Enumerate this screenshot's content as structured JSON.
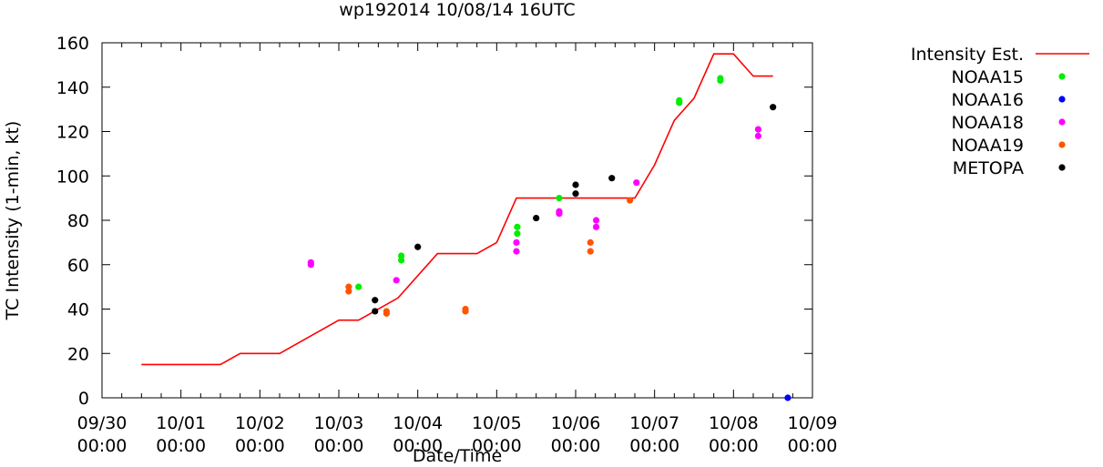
{
  "chart_data": {
    "type": "scatter",
    "title": "wp192014 10/08/14 16UTC",
    "xlabel": "Date/Time",
    "ylabel": "TC Intensity (1-min, kt)",
    "ylim": [
      0,
      160
    ],
    "y_ticks": [
      0,
      20,
      40,
      60,
      80,
      100,
      120,
      140,
      160
    ],
    "xlim": [
      "2014-09-30 00:00",
      "2014-10-09 00:00"
    ],
    "x_ticks": [
      {
        "date": "09/30",
        "time": "00:00"
      },
      {
        "date": "10/01",
        "time": "00:00"
      },
      {
        "date": "10/02",
        "time": "00:00"
      },
      {
        "date": "10/03",
        "time": "00:00"
      },
      {
        "date": "10/04",
        "time": "00:00"
      },
      {
        "date": "10/05",
        "time": "00:00"
      },
      {
        "date": "10/06",
        "time": "00:00"
      },
      {
        "date": "10/07",
        "time": "00:00"
      },
      {
        "date": "10/08",
        "time": "00:00"
      },
      {
        "date": "10/09",
        "time": "00:00"
      }
    ],
    "grid": false,
    "legend_position": "right",
    "series": [
      {
        "name": "Intensity Est.",
        "kind": "line",
        "color": "#ff0000",
        "points": [
          [
            "2014-09-30 12:00",
            15
          ],
          [
            "2014-10-01 12:00",
            15
          ],
          [
            "2014-10-01 18:00",
            20
          ],
          [
            "2014-10-02 06:00",
            20
          ],
          [
            "2014-10-03 00:00",
            35
          ],
          [
            "2014-10-03 06:00",
            35
          ],
          [
            "2014-10-03 18:00",
            45
          ],
          [
            "2014-10-04 06:00",
            65
          ],
          [
            "2014-10-04 18:00",
            65
          ],
          [
            "2014-10-05 00:00",
            70
          ],
          [
            "2014-10-05 06:00",
            90
          ],
          [
            "2014-10-06 18:00",
            90
          ],
          [
            "2014-10-07 00:00",
            105
          ],
          [
            "2014-10-07 06:00",
            125
          ],
          [
            "2014-10-07 12:00",
            135
          ],
          [
            "2014-10-07 18:00",
            155
          ],
          [
            "2014-10-08 00:00",
            155
          ],
          [
            "2014-10-08 06:00",
            145
          ],
          [
            "2014-10-08 12:00",
            145
          ]
        ]
      },
      {
        "name": "NOAA15",
        "kind": "points",
        "color": "#00ee00",
        "points": [
          [
            "2014-10-03 06:00",
            50
          ],
          [
            "2014-10-03 19:00",
            62
          ],
          [
            "2014-10-03 19:00",
            64
          ],
          [
            "2014-10-05 06:15",
            74
          ],
          [
            "2014-10-05 06:15",
            77
          ],
          [
            "2014-10-05 19:00",
            90
          ],
          [
            "2014-10-07 07:30",
            133
          ],
          [
            "2014-10-07 07:30",
            134
          ],
          [
            "2014-10-07 20:00",
            143
          ],
          [
            "2014-10-07 20:00",
            144
          ]
        ]
      },
      {
        "name": "NOAA16",
        "kind": "points",
        "color": "#0000ff",
        "points": [
          [
            "2014-10-08 16:30",
            0
          ]
        ]
      },
      {
        "name": "NOAA18",
        "kind": "points",
        "color": "#ff00ff",
        "points": [
          [
            "2014-10-02 15:30",
            60
          ],
          [
            "2014-10-02 15:30",
            61
          ],
          [
            "2014-10-03 17:30",
            53
          ],
          [
            "2014-10-05 06:00",
            66
          ],
          [
            "2014-10-05 06:00",
            70
          ],
          [
            "2014-10-05 19:00",
            83
          ],
          [
            "2014-10-05 19:00",
            84
          ],
          [
            "2014-10-06 06:15",
            77
          ],
          [
            "2014-10-06 06:15",
            80
          ],
          [
            "2014-10-06 18:30",
            97
          ],
          [
            "2014-10-08 07:30",
            118
          ],
          [
            "2014-10-08 07:30",
            121
          ]
        ]
      },
      {
        "name": "NOAA19",
        "kind": "points",
        "color": "#ff5500",
        "points": [
          [
            "2014-10-03 03:00",
            48
          ],
          [
            "2014-10-03 03:00",
            50
          ],
          [
            "2014-10-03 14:30",
            38
          ],
          [
            "2014-10-03 14:30",
            39
          ],
          [
            "2014-10-04 14:30",
            39
          ],
          [
            "2014-10-04 14:30",
            40
          ],
          [
            "2014-10-06 04:30",
            66
          ],
          [
            "2014-10-06 04:30",
            70
          ],
          [
            "2014-10-06 16:30",
            89
          ]
        ]
      },
      {
        "name": "METOPA",
        "kind": "points",
        "color": "#000000",
        "points": [
          [
            "2014-10-03 11:00",
            39
          ],
          [
            "2014-10-03 11:00",
            44
          ],
          [
            "2014-10-04 00:00",
            68
          ],
          [
            "2014-10-05 12:00",
            81
          ],
          [
            "2014-10-06 00:00",
            92
          ],
          [
            "2014-10-06 00:00",
            96
          ],
          [
            "2014-10-06 11:00",
            99
          ],
          [
            "2014-10-08 12:00",
            131
          ]
        ]
      }
    ]
  }
}
